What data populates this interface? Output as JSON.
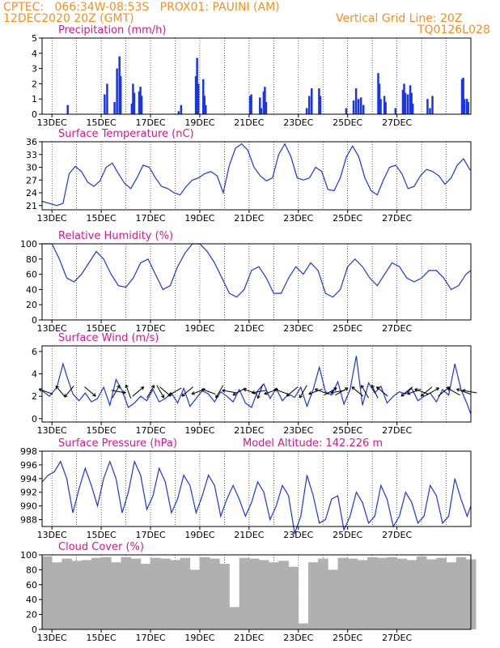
{
  "header": {
    "line1_left": "CPTEC:   066:34W-08:53S   PROX01: PAUINI (AM)",
    "line2_left": "12DEC2020 20Z (GMT)",
    "line2_right": "Vertical Grid Line: 20Z",
    "line3_right": "TQ0126L028"
  },
  "colors": {
    "header": "#ff8c1a",
    "title": "#e0148c",
    "series": "#1a35e6",
    "cloud": "#b0b0b0",
    "arrow": "#000000"
  },
  "x_tick_labels": [
    "13DEC",
    "15DEC",
    "17DEC",
    "19DEC",
    "21DEC",
    "23DEC",
    "25DEC",
    "27DEC"
  ],
  "model_altitude": "Model Altitude: 142.226 m",
  "chart_data": [
    {
      "type": "bar",
      "title": "Precipitation (mm/h)",
      "ylim": [
        0,
        5
      ],
      "yticks": [
        "0",
        "1",
        "2",
        "3",
        "4",
        "5"
      ],
      "x": [
        0.6,
        2.1,
        2.2,
        2.5,
        2.6,
        2.7,
        2.75,
        3.2,
        3.25,
        3.3,
        3.5,
        3.55,
        3.6,
        5.1,
        5.2,
        5.8,
        5.85,
        5.9,
        6.1,
        6.15,
        6.2,
        8.0,
        8.05,
        8.4,
        8.45,
        8.55,
        8.6,
        8.65,
        10.3,
        10.4,
        10.5,
        10.8,
        10.85,
        11.9,
        12.2,
        12.3,
        12.4,
        12.5,
        12.6,
        13.2,
        13.25,
        13.3,
        13.45,
        13.5,
        13.9,
        14.2,
        14.25,
        14.3,
        14.4,
        14.5,
        14.55,
        14.6,
        15.2,
        15.3,
        15.4,
        16.6,
        16.65,
        16.7,
        16.8,
        16.85
      ],
      "values": [
        0.6,
        1.3,
        2.0,
        0.8,
        3.0,
        3.8,
        2.5,
        0.7,
        2.0,
        1.4,
        1.5,
        1.8,
        1.2,
        0.2,
        0.6,
        2.5,
        3.7,
        2.0,
        2.3,
        1.2,
        0.6,
        1.2,
        1.3,
        1.1,
        0.4,
        1.5,
        1.8,
        0.8,
        0.4,
        1.2,
        1.7,
        1.7,
        1.2,
        0.4,
        0.9,
        1.7,
        1.0,
        1.1,
        0.6,
        2.7,
        2.0,
        1.0,
        1.2,
        0.8,
        0.4,
        1.6,
        2.0,
        1.4,
        1.3,
        1.9,
        1.4,
        0.7,
        1.0,
        0.4,
        1.2,
        2.3,
        2.4,
        1.0,
        1.0,
        0.8
      ],
      "xlim": [
        -0.4,
        17.0
      ]
    },
    {
      "type": "line",
      "title": "Surface Temperature (nC)",
      "ylim": [
        20,
        36
      ],
      "yticks": [
        "21",
        "24",
        "27",
        "30",
        "33",
        "36"
      ],
      "ytick_values": [
        21,
        24,
        27,
        30,
        33,
        36
      ],
      "x": [
        -0.4,
        0.2,
        0.45,
        0.7,
        0.95,
        1.2,
        1.45,
        1.7,
        1.95,
        2.2,
        2.45,
        2.7,
        2.95,
        3.2,
        3.45,
        3.7,
        3.95,
        4.2,
        4.45,
        4.7,
        4.95,
        5.2,
        5.45,
        5.7,
        5.95,
        6.2,
        6.45,
        6.7,
        6.95,
        7.2,
        7.45,
        7.7,
        7.95,
        8.2,
        8.45,
        8.7,
        8.95,
        9.2,
        9.45,
        9.7,
        9.95,
        10.2,
        10.45,
        10.7,
        10.95,
        11.2,
        11.45,
        11.7,
        11.95,
        12.2,
        12.45,
        12.7,
        12.95,
        13.2,
        13.45,
        13.7,
        13.95,
        14.2,
        14.45,
        14.7,
        14.95,
        15.2,
        15.45,
        15.7,
        15.95,
        16.2,
        16.45,
        16.7,
        16.95,
        17.0
      ],
      "values": [
        22.0,
        21.0,
        21.5,
        28.5,
        30.2,
        29.0,
        26.5,
        25.5,
        26.8,
        30.0,
        31.0,
        28.5,
        26.2,
        25.0,
        27.5,
        30.5,
        30.0,
        27.5,
        25.5,
        25.0,
        24.0,
        23.5,
        25.5,
        27.0,
        27.5,
        28.5,
        29.0,
        28.0,
        24.0,
        30.5,
        34.5,
        35.5,
        34.0,
        30.0,
        28.0,
        26.8,
        27.5,
        33.0,
        35.5,
        32.5,
        27.5,
        27.0,
        27.5,
        30.0,
        29.0,
        24.8,
        24.5,
        27.5,
        32.5,
        35.0,
        32.5,
        27.5,
        24.5,
        23.5,
        27.0,
        30.0,
        30.5,
        28.5,
        25.0,
        25.5,
        28.0,
        29.5,
        29.0,
        28.0,
        26.0,
        27.5,
        30.5,
        32.0,
        29.5,
        29.3
      ],
      "xlim": [
        -0.4,
        17.0
      ]
    },
    {
      "type": "line",
      "title": "Relative Humidity (%)",
      "ylim": [
        0,
        100
      ],
      "yticks": [
        "0",
        "20",
        "40",
        "60",
        "80",
        "100"
      ],
      "ytick_values": [
        0,
        20,
        40,
        60,
        80,
        100
      ],
      "x": [
        -0.4,
        0.0,
        0.3,
        0.6,
        0.9,
        1.2,
        1.5,
        1.8,
        2.1,
        2.4,
        2.7,
        3.0,
        3.3,
        3.6,
        3.9,
        4.2,
        4.5,
        4.8,
        5.1,
        5.4,
        5.7,
        6.0,
        6.3,
        6.6,
        6.9,
        7.2,
        7.5,
        7.8,
        8.1,
        8.4,
        8.7,
        9.0,
        9.3,
        9.6,
        9.9,
        10.2,
        10.5,
        10.8,
        11.1,
        11.4,
        11.7,
        12.0,
        12.3,
        12.6,
        12.9,
        13.2,
        13.5,
        13.8,
        14.1,
        14.4,
        14.7,
        15.0,
        15.3,
        15.6,
        15.9,
        16.2,
        16.5,
        16.8,
        17.0
      ],
      "values": [
        100,
        100,
        80,
        55,
        50,
        60,
        75,
        90,
        80,
        60,
        45,
        43,
        55,
        75,
        80,
        60,
        40,
        45,
        70,
        88,
        100,
        100,
        90,
        75,
        55,
        35,
        30,
        40,
        65,
        70,
        55,
        35,
        35,
        55,
        70,
        60,
        75,
        65,
        35,
        30,
        40,
        70,
        80,
        70,
        55,
        45,
        60,
        75,
        70,
        55,
        50,
        55,
        65,
        65,
        55,
        40,
        45,
        60,
        65
      ],
      "xlim": [
        -0.4,
        17.0
      ]
    },
    {
      "type": "line",
      "title": "Surface Wind (m/s)",
      "ylim": [
        -0.3,
        6.5
      ],
      "yticks": [
        "0",
        "2",
        "4",
        "6"
      ],
      "ytick_values": [
        0,
        2,
        4,
        6
      ],
      "x": [
        -0.4,
        -0.1,
        0.2,
        0.45,
        0.6,
        0.85,
        1.1,
        1.35,
        1.6,
        1.85,
        2.1,
        2.35,
        2.6,
        2.85,
        3.1,
        3.35,
        3.6,
        3.85,
        4.1,
        4.35,
        4.6,
        4.85,
        5.1,
        5.35,
        5.6,
        5.85,
        6.1,
        6.35,
        6.6,
        6.85,
        7.1,
        7.35,
        7.6,
        7.85,
        8.1,
        8.35,
        8.6,
        8.85,
        9.1,
        9.35,
        9.6,
        9.85,
        10.1,
        10.35,
        10.6,
        10.85,
        11.1,
        11.35,
        11.6,
        11.85,
        12.1,
        12.35,
        12.6,
        12.85,
        13.1,
        13.35,
        13.6,
        13.85,
        14.1,
        14.35,
        14.6,
        14.85,
        15.1,
        15.35,
        15.6,
        15.85,
        16.1,
        16.35,
        16.6,
        16.85,
        17.0
      ],
      "values": [
        2.5,
        2.0,
        2.8,
        4.9,
        3.8,
        2.2,
        1.6,
        2.3,
        1.5,
        1.8,
        2.8,
        1.2,
        3.5,
        2.5,
        1.0,
        1.4,
        2.0,
        1.6,
        2.6,
        1.5,
        1.8,
        2.3,
        1.4,
        2.7,
        1.1,
        1.8,
        2.5,
        2.2,
        1.5,
        2.4,
        2.0,
        1.5,
        2.6,
        1.4,
        1.0,
        2.5,
        3.1,
        1.8,
        2.7,
        1.6,
        2.2,
        1.9,
        2.8,
        1.1,
        2.6,
        4.6,
        2.4,
        2.1,
        3.3,
        1.3,
        2.6,
        5.6,
        1.2,
        3.2,
        2.3,
        2.9,
        1.4,
        2.0,
        2.4,
        2.2,
        2.7,
        1.6,
        2.0,
        2.3,
        1.5,
        2.6,
        2.1,
        4.9,
        2.6,
        1.3,
        0.4
      ],
      "arrows": [
        {
          "x": -0.25,
          "dir": 200
        },
        {
          "x": 0.35,
          "dir": 230
        },
        {
          "x": 0.7,
          "dir": 130
        },
        {
          "x": 1.55,
          "dir": 40
        },
        {
          "x": 2.6,
          "dir": 300
        },
        {
          "x": 2.7,
          "dir": 10
        },
        {
          "x": 3.1,
          "dir": 250
        },
        {
          "x": 3.5,
          "dir": 320
        },
        {
          "x": 4.0,
          "dir": 300
        },
        {
          "x": 4.4,
          "dir": 60
        },
        {
          "x": 4.6,
          "dir": 40
        },
        {
          "x": 5.0,
          "dir": 150
        },
        {
          "x": 5.5,
          "dir": 140
        },
        {
          "x": 5.95,
          "dir": 160
        },
        {
          "x": 6.35,
          "dir": 200
        },
        {
          "x": 6.8,
          "dir": 120
        },
        {
          "x": 7.2,
          "dir": 190
        },
        {
          "x": 7.6,
          "dir": 150
        },
        {
          "x": 8.05,
          "dir": 200
        },
        {
          "x": 8.4,
          "dir": 170
        },
        {
          "x": 8.45,
          "dir": 110
        },
        {
          "x": 8.9,
          "dir": 160
        },
        {
          "x": 9.3,
          "dir": 200
        },
        {
          "x": 9.75,
          "dir": 140
        },
        {
          "x": 10.2,
          "dir": 120
        },
        {
          "x": 10.7,
          "dir": 160
        },
        {
          "x": 10.95,
          "dir": 200
        },
        {
          "x": 11.3,
          "dir": 330
        },
        {
          "x": 11.6,
          "dir": 170
        },
        {
          "x": 11.75,
          "dir": 330
        },
        {
          "x": 12.4,
          "dir": 220
        },
        {
          "x": 12.7,
          "dir": 240
        },
        {
          "x": 13.1,
          "dir": 245
        },
        {
          "x": 13.4,
          "dir": 220
        },
        {
          "x": 14.4,
          "dir": 140
        },
        {
          "x": 14.7,
          "dir": 160
        },
        {
          "x": 15.0,
          "dir": 200
        },
        {
          "x": 15.2,
          "dir": 140
        },
        {
          "x": 15.45,
          "dir": 330
        },
        {
          "x": 15.9,
          "dir": 320
        },
        {
          "x": 16.3,
          "dir": 210
        },
        {
          "x": 16.7,
          "dir": 200
        },
        {
          "x": 16.95,
          "dir": 190
        }
      ],
      "xlim": [
        -0.4,
        17.0
      ]
    },
    {
      "type": "line",
      "title": "Surface Pressure (hPa)",
      "ylim": [
        987,
        998
      ],
      "yticks": [
        "988",
        "990",
        "992",
        "994",
        "996",
        "998"
      ],
      "ytick_values": [
        988,
        990,
        992,
        994,
        996,
        998
      ],
      "x": [
        -0.4,
        -0.15,
        0.1,
        0.35,
        0.6,
        0.85,
        1.1,
        1.35,
        1.6,
        1.85,
        2.1,
        2.35,
        2.6,
        2.85,
        3.1,
        3.35,
        3.6,
        3.85,
        4.1,
        4.35,
        4.6,
        4.85,
        5.1,
        5.35,
        5.6,
        5.85,
        6.1,
        6.35,
        6.6,
        6.85,
        7.1,
        7.35,
        7.6,
        7.85,
        8.1,
        8.35,
        8.6,
        8.85,
        9.1,
        9.35,
        9.6,
        9.85,
        10.1,
        10.35,
        10.6,
        10.85,
        11.1,
        11.35,
        11.6,
        11.85,
        12.1,
        12.35,
        12.6,
        12.85,
        13.1,
        13.35,
        13.6,
        13.85,
        14.1,
        14.35,
        14.6,
        14.85,
        15.1,
        15.35,
        15.6,
        15.85,
        16.1,
        16.35,
        16.6,
        16.85,
        17.0
      ],
      "values": [
        993.5,
        994.5,
        995.0,
        996.5,
        994.0,
        989.0,
        992.5,
        995.5,
        993.0,
        990.0,
        994.0,
        996.5,
        994.0,
        989.0,
        992.0,
        996.5,
        994.5,
        989.5,
        991.5,
        995.5,
        993.5,
        989.0,
        991.0,
        994.5,
        993.0,
        989.0,
        991.5,
        994.5,
        993.0,
        988.5,
        991.0,
        993.0,
        991.0,
        988.5,
        990.5,
        993.5,
        992.0,
        988.0,
        990.0,
        993.0,
        991.5,
        986.0,
        988.5,
        994.5,
        991.5,
        987.5,
        988.0,
        991.0,
        991.5,
        986.5,
        988.5,
        992.0,
        990.5,
        987.5,
        988.5,
        993.0,
        991.0,
        987.0,
        988.5,
        992.0,
        990.5,
        987.5,
        988.5,
        993.0,
        991.5,
        987.5,
        988.5,
        994.0,
        991.0,
        988.5,
        990.0
      ],
      "xlim": [
        -0.4,
        17.0
      ]
    },
    {
      "type": "bar",
      "title": "Cloud Cover (%)",
      "ylim": [
        0,
        100
      ],
      "yticks": [
        "0",
        "20",
        "40",
        "60",
        "80",
        "100"
      ],
      "ytick_values": [
        0,
        20,
        40,
        60,
        80,
        100
      ],
      "x": [
        -0.4,
        0.0,
        0.4,
        0.8,
        1.2,
        1.6,
        2.0,
        2.4,
        2.8,
        3.2,
        3.6,
        4.0,
        4.4,
        4.8,
        5.2,
        5.6,
        6.0,
        6.4,
        6.8,
        7.2,
        7.6,
        8.0,
        8.4,
        8.8,
        9.2,
        9.6,
        10.0,
        10.4,
        10.8,
        11.2,
        11.6,
        12.0,
        12.4,
        12.8,
        13.2,
        13.6,
        14.0,
        14.4,
        14.8,
        15.2,
        15.6,
        16.0,
        16.4,
        16.8
      ],
      "values": [
        98,
        90,
        95,
        92,
        93,
        96,
        97,
        90,
        97,
        95,
        88,
        96,
        95,
        93,
        96,
        80,
        97,
        95,
        88,
        30,
        96,
        95,
        93,
        90,
        92,
        84,
        8,
        90,
        95,
        80,
        96,
        95,
        93,
        97,
        96,
        97,
        95,
        93,
        98,
        94,
        96,
        90,
        97,
        94
      ],
      "xlim": [
        -0.4,
        17.0
      ]
    }
  ]
}
